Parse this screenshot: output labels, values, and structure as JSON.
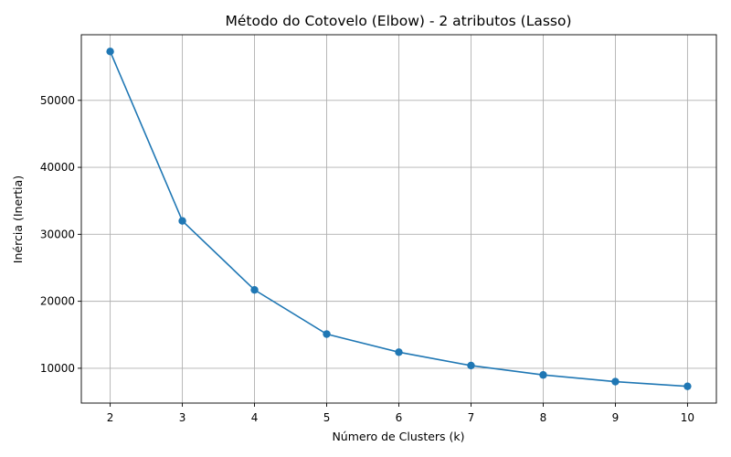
{
  "chart_data": {
    "type": "line",
    "title": "Método do Cotovelo (Elbow) - 2 atributos (Lasso)",
    "xlabel": "Número de Clusters (k)",
    "ylabel": "Inércia (Inertia)",
    "x": [
      2,
      3,
      4,
      5,
      6,
      7,
      8,
      9,
      10
    ],
    "series": [
      {
        "values": [
          57300,
          32000,
          21700,
          15100,
          12400,
          10400,
          9000,
          8000,
          7300
        ],
        "color": "#1f77b4",
        "marker": "circle"
      }
    ],
    "xlim": [
      1.6,
      10.4
    ],
    "ylim": [
      4800,
      59800
    ],
    "xticks": [
      2,
      3,
      4,
      5,
      6,
      7,
      8,
      9,
      10
    ],
    "yticks": [
      10000,
      20000,
      30000,
      40000,
      50000
    ],
    "grid": true
  }
}
